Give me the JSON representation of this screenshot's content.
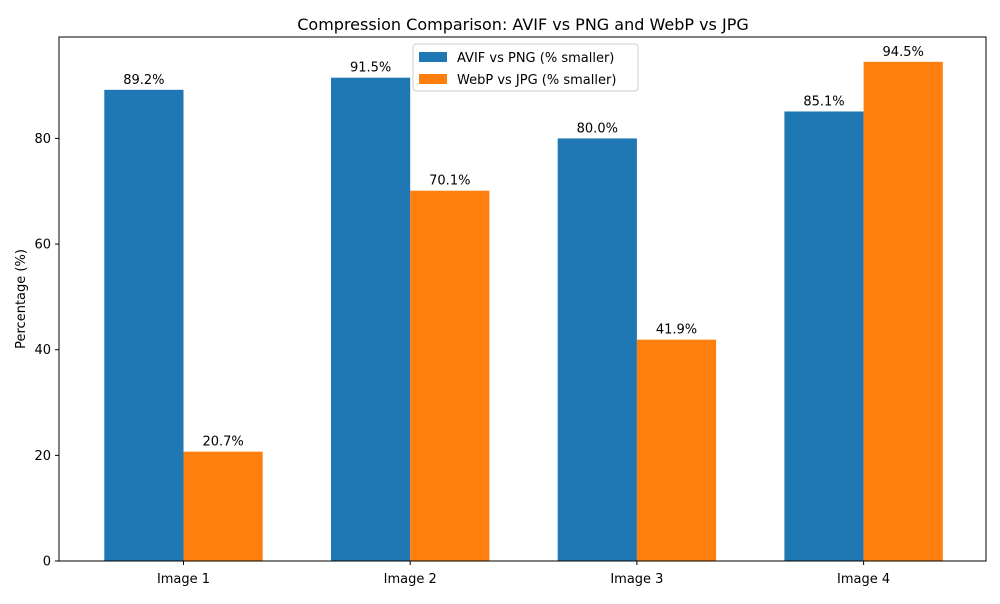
{
  "chart_data": {
    "type": "bar",
    "title": "Compression Comparison: AVIF vs PNG and WebP vs JPG",
    "xlabel": "",
    "ylabel": "Percentage (%)",
    "categories": [
      "Image 1",
      "Image 2",
      "Image 3",
      "Image 4"
    ],
    "series": [
      {
        "name": "AVIF vs PNG (% smaller)",
        "color": "#1f77b4",
        "values": [
          89.2,
          91.5,
          80.0,
          85.1
        ],
        "labels": [
          "89.2%",
          "91.5%",
          "80.0%",
          "85.1%"
        ]
      },
      {
        "name": "WebP vs JPG (% smaller)",
        "color": "#ff7f0e",
        "values": [
          20.7,
          70.1,
          41.9,
          94.5
        ],
        "labels": [
          "20.7%",
          "70.1%",
          "41.9%",
          "94.5%"
        ]
      }
    ],
    "yticks": [
      0,
      20,
      40,
      60,
      80
    ],
    "ytick_labels": [
      "0",
      "20",
      "40",
      "60",
      "80"
    ],
    "ylim": [
      0,
      99.2
    ],
    "grid": false,
    "legend_position": "top-center"
  }
}
